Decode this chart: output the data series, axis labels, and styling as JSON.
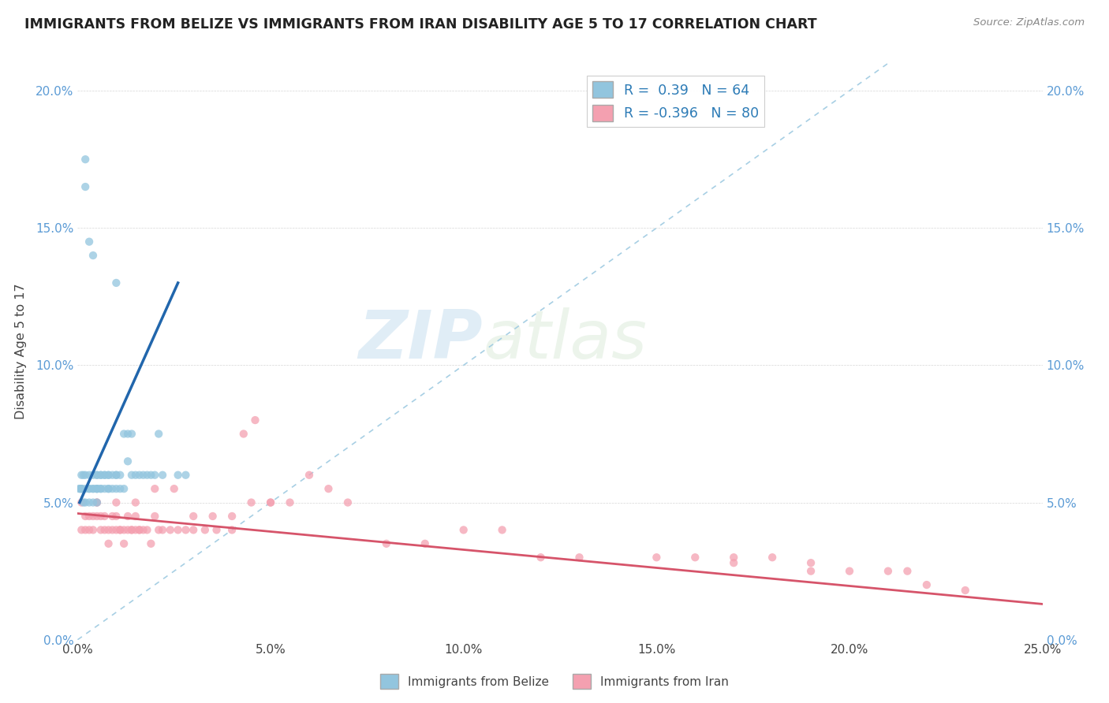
{
  "title": "IMMIGRANTS FROM BELIZE VS IMMIGRANTS FROM IRAN DISABILITY AGE 5 TO 17 CORRELATION CHART",
  "source": "Source: ZipAtlas.com",
  "ylabel": "Disability Age 5 to 17",
  "xlim": [
    0.0,
    0.25
  ],
  "ylim": [
    0.0,
    0.21
  ],
  "x_ticks": [
    0.0,
    0.05,
    0.1,
    0.15,
    0.2,
    0.25
  ],
  "y_ticks": [
    0.0,
    0.05,
    0.1,
    0.15,
    0.2
  ],
  "belize_color": "#92c5de",
  "iran_color": "#f4a0b0",
  "belize_line_color": "#2166ac",
  "iran_line_color": "#d6546a",
  "dashed_line_color": "#9ecae1",
  "R_belize": 0.39,
  "N_belize": 64,
  "R_iran": -0.396,
  "N_iran": 80,
  "watermark_zip": "ZIP",
  "watermark_atlas": "atlas",
  "belize_scatter_x": [
    0.0005,
    0.001,
    0.001,
    0.0015,
    0.002,
    0.002,
    0.002,
    0.003,
    0.003,
    0.003,
    0.004,
    0.004,
    0.004,
    0.005,
    0.005,
    0.005,
    0.005,
    0.006,
    0.006,
    0.006,
    0.006,
    0.007,
    0.007,
    0.007,
    0.008,
    0.008,
    0.008,
    0.008,
    0.009,
    0.009,
    0.01,
    0.01,
    0.01,
    0.01,
    0.011,
    0.011,
    0.012,
    0.012,
    0.013,
    0.013,
    0.014,
    0.014,
    0.015,
    0.016,
    0.017,
    0.018,
    0.019,
    0.02,
    0.021,
    0.022,
    0.0005,
    0.001,
    0.001,
    0.0015,
    0.002,
    0.002,
    0.003,
    0.003,
    0.004,
    0.004,
    0.005,
    0.005,
    0.026,
    0.028
  ],
  "belize_scatter_y": [
    0.055,
    0.06,
    0.055,
    0.06,
    0.175,
    0.165,
    0.055,
    0.145,
    0.06,
    0.055,
    0.14,
    0.06,
    0.055,
    0.055,
    0.06,
    0.055,
    0.06,
    0.055,
    0.06,
    0.06,
    0.055,
    0.06,
    0.055,
    0.06,
    0.06,
    0.055,
    0.06,
    0.055,
    0.06,
    0.055,
    0.06,
    0.055,
    0.06,
    0.13,
    0.055,
    0.06,
    0.055,
    0.075,
    0.075,
    0.065,
    0.06,
    0.075,
    0.06,
    0.06,
    0.06,
    0.06,
    0.06,
    0.06,
    0.075,
    0.06,
    0.055,
    0.055,
    0.055,
    0.05,
    0.06,
    0.05,
    0.055,
    0.05,
    0.055,
    0.05,
    0.055,
    0.05,
    0.06,
    0.06
  ],
  "iran_scatter_x": [
    0.001,
    0.001,
    0.002,
    0.002,
    0.003,
    0.003,
    0.004,
    0.004,
    0.005,
    0.005,
    0.006,
    0.006,
    0.007,
    0.007,
    0.008,
    0.008,
    0.009,
    0.009,
    0.01,
    0.01,
    0.011,
    0.011,
    0.012,
    0.012,
    0.013,
    0.013,
    0.014,
    0.014,
    0.015,
    0.015,
    0.016,
    0.016,
    0.017,
    0.018,
    0.019,
    0.02,
    0.021,
    0.022,
    0.024,
    0.026,
    0.028,
    0.03,
    0.033,
    0.036,
    0.04,
    0.043,
    0.046,
    0.05,
    0.055,
    0.06,
    0.065,
    0.07,
    0.08,
    0.09,
    0.1,
    0.11,
    0.12,
    0.13,
    0.15,
    0.16,
    0.17,
    0.18,
    0.19,
    0.2,
    0.21,
    0.215,
    0.22,
    0.23,
    0.17,
    0.19,
    0.005,
    0.01,
    0.015,
    0.02,
    0.025,
    0.03,
    0.035,
    0.04,
    0.045,
    0.05
  ],
  "iran_scatter_y": [
    0.04,
    0.05,
    0.045,
    0.04,
    0.045,
    0.04,
    0.04,
    0.045,
    0.05,
    0.045,
    0.045,
    0.04,
    0.04,
    0.045,
    0.04,
    0.035,
    0.04,
    0.045,
    0.04,
    0.045,
    0.04,
    0.04,
    0.04,
    0.035,
    0.04,
    0.045,
    0.04,
    0.04,
    0.04,
    0.045,
    0.04,
    0.04,
    0.04,
    0.04,
    0.035,
    0.045,
    0.04,
    0.04,
    0.04,
    0.04,
    0.04,
    0.04,
    0.04,
    0.04,
    0.04,
    0.075,
    0.08,
    0.05,
    0.05,
    0.06,
    0.055,
    0.05,
    0.035,
    0.035,
    0.04,
    0.04,
    0.03,
    0.03,
    0.03,
    0.03,
    0.03,
    0.03,
    0.025,
    0.025,
    0.025,
    0.025,
    0.02,
    0.018,
    0.028,
    0.028,
    0.05,
    0.05,
    0.05,
    0.055,
    0.055,
    0.045,
    0.045,
    0.045,
    0.05,
    0.05
  ],
  "belize_trend_x": [
    0.0005,
    0.026
  ],
  "belize_trend_y": [
    0.05,
    0.13
  ],
  "iran_trend_x": [
    0.0,
    0.25
  ],
  "iran_trend_y": [
    0.046,
    0.013
  ]
}
